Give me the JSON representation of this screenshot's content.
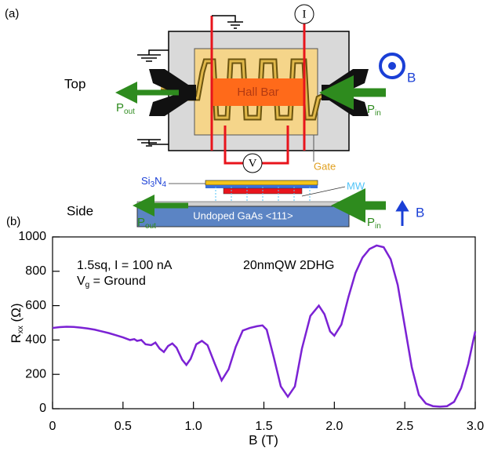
{
  "panel_labels": [
    "(a)",
    "(b)"
  ],
  "diagram": {
    "top_label": "Top",
    "side_label": "Side",
    "hall_bar": "Hall Bar",
    "current": "I",
    "voltage": "V",
    "field_top": "B",
    "field_side": "B",
    "gate": "Gate",
    "mw": "MW",
    "substrate": "Undoped GaAs <111>",
    "si3n4": [
      "Si",
      "3",
      "N",
      "4"
    ],
    "p_out": [
      "P",
      "out"
    ],
    "p_in": [
      "P",
      "in"
    ]
  },
  "chart_data": {
    "type": "line",
    "xlabel": "B (T)",
    "ylabel": [
      "R",
      "xx",
      " (Ω)"
    ],
    "annotations": [
      "1.5sq, I = 100 nA",
      [
        "V",
        "g",
        " = Ground"
      ],
      "20nmQW 2DHG"
    ],
    "xlim": [
      0,
      3
    ],
    "ylim": [
      0,
      1000
    ],
    "xticks": [
      0,
      0.5,
      {
        "value": 1,
        "label": "1.0"
      },
      1.5,
      {
        "value": 2,
        "label": "2.0"
      },
      2.5,
      {
        "value": 3,
        "label": "3.0"
      }
    ],
    "yticks": [
      0,
      200,
      400,
      600,
      800,
      1000
    ],
    "series": [
      {
        "color": "#7b22d4",
        "x": [
          0,
          0.05,
          0.1,
          0.15,
          0.2,
          0.25,
          0.3,
          0.35,
          0.4,
          0.45,
          0.5,
          0.55,
          0.58,
          0.6,
          0.63,
          0.66,
          0.7,
          0.73,
          0.76,
          0.79,
          0.82,
          0.85,
          0.88,
          0.92,
          0.95,
          0.98,
          1.02,
          1.06,
          1.1,
          1.15,
          1.2,
          1.25,
          1.3,
          1.35,
          1.4,
          1.45,
          1.49,
          1.52,
          1.57,
          1.62,
          1.67,
          1.72,
          1.77,
          1.83,
          1.89,
          1.93,
          1.97,
          2.0,
          2.05,
          2.1,
          2.15,
          2.2,
          2.25,
          2.3,
          2.35,
          2.4,
          2.45,
          2.5,
          2.55,
          2.6,
          2.65,
          2.7,
          2.75,
          2.8,
          2.85,
          2.9,
          2.95,
          3.0
        ],
        "values": [
          470,
          475,
          477,
          476,
          472,
          467,
          460,
          450,
          440,
          428,
          415,
          400,
          405,
          395,
          400,
          375,
          370,
          385,
          350,
          330,
          365,
          380,
          355,
          285,
          255,
          290,
          375,
          395,
          370,
          265,
          165,
          230,
          360,
          455,
          470,
          480,
          485,
          460,
          300,
          130,
          70,
          130,
          350,
          540,
          600,
          550,
          450,
          425,
          490,
          650,
          790,
          880,
          930,
          950,
          940,
          870,
          720,
          480,
          240,
          80,
          30,
          15,
          12,
          15,
          40,
          120,
          260,
          450
        ]
      }
    ]
  }
}
